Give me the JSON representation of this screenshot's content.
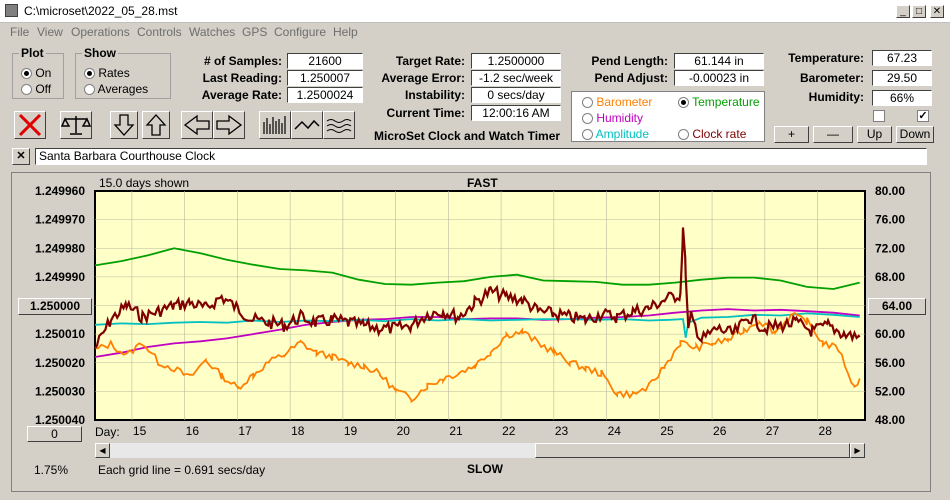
{
  "window": {
    "title": "C:\\microset\\2022_05_28.mst",
    "controls": {
      "minimize": "_",
      "maximize": "□",
      "close": "✕"
    }
  },
  "menu": [
    "File",
    "View",
    "Operations",
    "Controls",
    "Watches",
    "GPS",
    "Configure",
    "Help"
  ],
  "plot_group": {
    "title": "Plot",
    "options": [
      "On",
      "Off"
    ],
    "selected": "On"
  },
  "show_group": {
    "title": "Show",
    "options": [
      "Rates",
      "Averages"
    ],
    "selected": "Rates"
  },
  "stats": {
    "samples_label": "# of Samples:",
    "samples": "21600",
    "last_label": "Last Reading:",
    "last": "1.250007",
    "avg_rate_label": "Average Rate:",
    "avg_rate": "1.2500024",
    "target_label": "Target Rate:",
    "target": "1.2500000",
    "avg_err_label": "Average Error:",
    "avg_err": "-1.2 sec/week",
    "instab_label": "Instability:",
    "instab": "0 secs/day",
    "time_label": "Current Time:",
    "time": "12:00:16 AM",
    "pend_len_label": "Pend Length:",
    "pend_len": "61.144 in",
    "pend_adj_label": "Pend Adjust:",
    "pend_adj": "-0.00023 in",
    "temp_label": "Temperature:",
    "temp": "67.23",
    "baro_label": "Barometer:",
    "baro": "29.50",
    "hum_label": "Humidity:",
    "hum": "66%"
  },
  "app_caption": "MicroSet Clock and Watch Timer",
  "sensor_group": {
    "selected": "Temperature",
    "options": [
      {
        "label": "Barometer",
        "color": "#ff8000"
      },
      {
        "label": "Temperature",
        "color": "#00a000"
      },
      {
        "label": "Humidity",
        "color": "#c000c0"
      },
      {
        "label": "Clock rate",
        "color": "#800000"
      },
      {
        "label": "Amplitude",
        "color": "#00c0c0"
      }
    ]
  },
  "checkboxes": {
    "left": "",
    "right": "✓"
  },
  "scale_buttons": {
    "plus": "+",
    "minus": "—",
    "up": "Up",
    "down": "Down"
  },
  "clock_name": "Santa Barbara Courthouse Clock",
  "close_x": "✕",
  "plot": {
    "days_shown": "15.0 days shown",
    "fast": "FAST",
    "slow": "SLOW",
    "day_prefix": "Day:",
    "grid_note": "Each grid line = 0.691 secs/day",
    "percent": "1.75%",
    "left_button": "1.250000",
    "right_button": "64.00",
    "bottom_button": "0"
  },
  "chart_data": {
    "type": "line",
    "y_left_ticks": [
      "1.249960",
      "1.249970",
      "1.249980",
      "1.249990",
      "1.250000",
      "1.250010",
      "1.250020",
      "1.250030",
      "1.250040"
    ],
    "y_right_ticks": [
      "80.00",
      "76.00",
      "72.00",
      "68.00",
      "64.00",
      "60.00",
      "56.00",
      "52.00",
      "48.00"
    ],
    "x_ticks": [
      "15",
      "16",
      "17",
      "18",
      "19",
      "20",
      "21",
      "22",
      "23",
      "24",
      "25",
      "26",
      "27",
      "28"
    ],
    "xlim": [
      14.3,
      28.9
    ],
    "ylim_left": [
      1.24996,
      1.25004
    ],
    "ylim_right": [
      48,
      80
    ],
    "series": [
      {
        "name": "Temperature",
        "color": "#00a000",
        "axis": "right",
        "x": [
          14.3,
          14.8,
          15.3,
          15.8,
          16.3,
          16.8,
          17.3,
          17.8,
          18.3,
          18.8,
          19.3,
          19.8,
          20.3,
          20.8,
          21.3,
          21.8,
          22.3,
          22.8,
          23.3,
          23.8,
          24.3,
          24.8,
          25.3,
          25.8,
          26.3,
          26.8,
          27.3,
          27.8,
          28.3,
          28.8
        ],
        "y": [
          69.6,
          70.2,
          71.0,
          72.0,
          71.3,
          70.4,
          69.7,
          69.1,
          68.9,
          68.6,
          67.6,
          67.0,
          66.9,
          67.2,
          67.4,
          68.0,
          68.3,
          67.5,
          67.4,
          67.3,
          66.9,
          66.9,
          67.2,
          67.6,
          67.9,
          67.9,
          67.5,
          66.6,
          66.3,
          67.2
        ]
      },
      {
        "name": "Humidity",
        "color": "#c000c0",
        "axis": "right",
        "x": [
          14.3,
          14.8,
          15.3,
          15.8,
          16.3,
          16.8,
          17.3,
          17.8,
          18.3,
          18.8,
          19.3,
          19.8,
          20.3,
          20.8,
          21.3,
          21.8,
          22.3,
          22.8,
          23.3,
          23.8,
          24.3,
          24.8,
          25.3,
          25.8,
          26.3,
          26.8,
          27.3,
          27.8,
          28.3,
          28.8
        ],
        "y": [
          56.8,
          57.4,
          58.2,
          58.7,
          59.0,
          59.4,
          60.0,
          60.6,
          61.3,
          61.7,
          62.0,
          62.1,
          62.4,
          62.4,
          62.1,
          62.2,
          62.2,
          62.0,
          62.1,
          62.3,
          62.4,
          62.6,
          63.0,
          63.3,
          63.5,
          63.3,
          63.4,
          63.2,
          63.0,
          62.6
        ]
      },
      {
        "name": "Amplitude",
        "color": "#00c0c0",
        "axis": "right",
        "x": [
          14.3,
          14.8,
          15.3,
          15.8,
          16.3,
          16.8,
          17.3,
          17.8,
          18.3,
          18.8,
          19.3,
          19.8,
          20.3,
          20.8,
          21.3,
          21.8,
          22.3,
          22.8,
          23.3,
          23.8,
          24.3,
          24.8,
          25.2,
          25.45,
          25.5,
          25.55,
          25.8,
          26.3,
          26.8,
          27.3,
          27.8,
          28.3,
          28.8
        ],
        "y": [
          61.3,
          61.5,
          61.4,
          61.6,
          61.7,
          61.6,
          61.9,
          61.7,
          61.9,
          61.8,
          62.0,
          61.8,
          62.1,
          61.9,
          62.1,
          61.9,
          62.0,
          62.1,
          62.1,
          62.0,
          62.1,
          61.9,
          62.0,
          62.1,
          59.5,
          61.6,
          62.3,
          62.4,
          62.7,
          62.6,
          62.9,
          62.7,
          62.4
        ]
      },
      {
        "name": "Barometer",
        "color": "#ff8000",
        "axis": "right",
        "x": [
          14.3,
          14.6,
          14.9,
          15.2,
          15.5,
          15.8,
          16.1,
          16.4,
          16.7,
          17.0,
          17.3,
          17.6,
          17.9,
          18.2,
          18.5,
          18.8,
          19.1,
          19.4,
          19.7,
          20.0,
          20.3,
          20.6,
          20.9,
          21.2,
          21.5,
          21.8,
          22.1,
          22.4,
          22.7,
          23.0,
          23.3,
          23.6,
          23.9,
          24.2,
          24.5,
          24.8,
          25.1,
          25.4,
          25.7,
          26.0,
          26.3,
          26.6,
          26.9,
          27.2,
          27.5,
          27.8,
          28.1,
          28.4,
          28.7,
          28.8
        ],
        "y": [
          57.8,
          58.6,
          57.0,
          58.9,
          56.1,
          55.2,
          53.9,
          56.4,
          54.2,
          52.5,
          54.3,
          56.1,
          57.2,
          58.8,
          57.4,
          56.8,
          55.9,
          55.6,
          54.4,
          52.1,
          51.0,
          52.8,
          53.8,
          54.6,
          55.6,
          57.5,
          59.9,
          60.3,
          58.8,
          57.5,
          56.1,
          55.2,
          54.5,
          51.7,
          51.6,
          52.6,
          55.5,
          58.8,
          58.1,
          58.7,
          59.2,
          60.5,
          61.9,
          60.3,
          62.6,
          61.8,
          58.8,
          57.9,
          52.5,
          53.8
        ]
      },
      {
        "name": "Clock rate",
        "color": "#800000",
        "axis": "left",
        "x": [
          14.3,
          14.6,
          14.9,
          15.2,
          15.5,
          15.8,
          16.1,
          16.4,
          16.7,
          17.0,
          17.3,
          17.6,
          17.9,
          18.2,
          18.5,
          18.8,
          19.1,
          19.4,
          19.7,
          20.0,
          20.3,
          20.6,
          20.9,
          21.2,
          21.5,
          21.8,
          22.1,
          22.4,
          22.7,
          23.0,
          23.3,
          23.6,
          23.9,
          24.2,
          24.5,
          24.8,
          25.1,
          25.4,
          25.45,
          25.5,
          25.55,
          25.6,
          25.8,
          26.1,
          26.4,
          26.7,
          27.0,
          27.3,
          27.6,
          27.9,
          28.2,
          28.5,
          28.8
        ],
        "y": [
          1.250015,
          1.250005,
          1.25,
          1.250004,
          1.250002,
          1.25,
          1.249999,
          1.250001,
          1.249997,
          1.250001,
          1.250005,
          1.250006,
          1.250007,
          1.250004,
          1.250006,
          1.250005,
          1.250006,
          1.250007,
          1.250008,
          1.250008,
          1.250007,
          1.250003,
          1.250002,
          1.250004,
          1.249999,
          1.249995,
          1.249997,
          1.249998,
          1.250002,
          1.250003,
          1.250004,
          1.250005,
          1.250003,
          1.250004,
          1.250002,
          1.250001,
          1.249998,
          1.249996,
          1.249973,
          1.249988,
          1.250009,
          1.250004,
          1.250012,
          1.250008,
          1.25001,
          1.250004,
          1.250008,
          1.250007,
          1.250006,
          1.250009,
          1.250007,
          1.25001,
          1.250011
        ]
      }
    ]
  }
}
